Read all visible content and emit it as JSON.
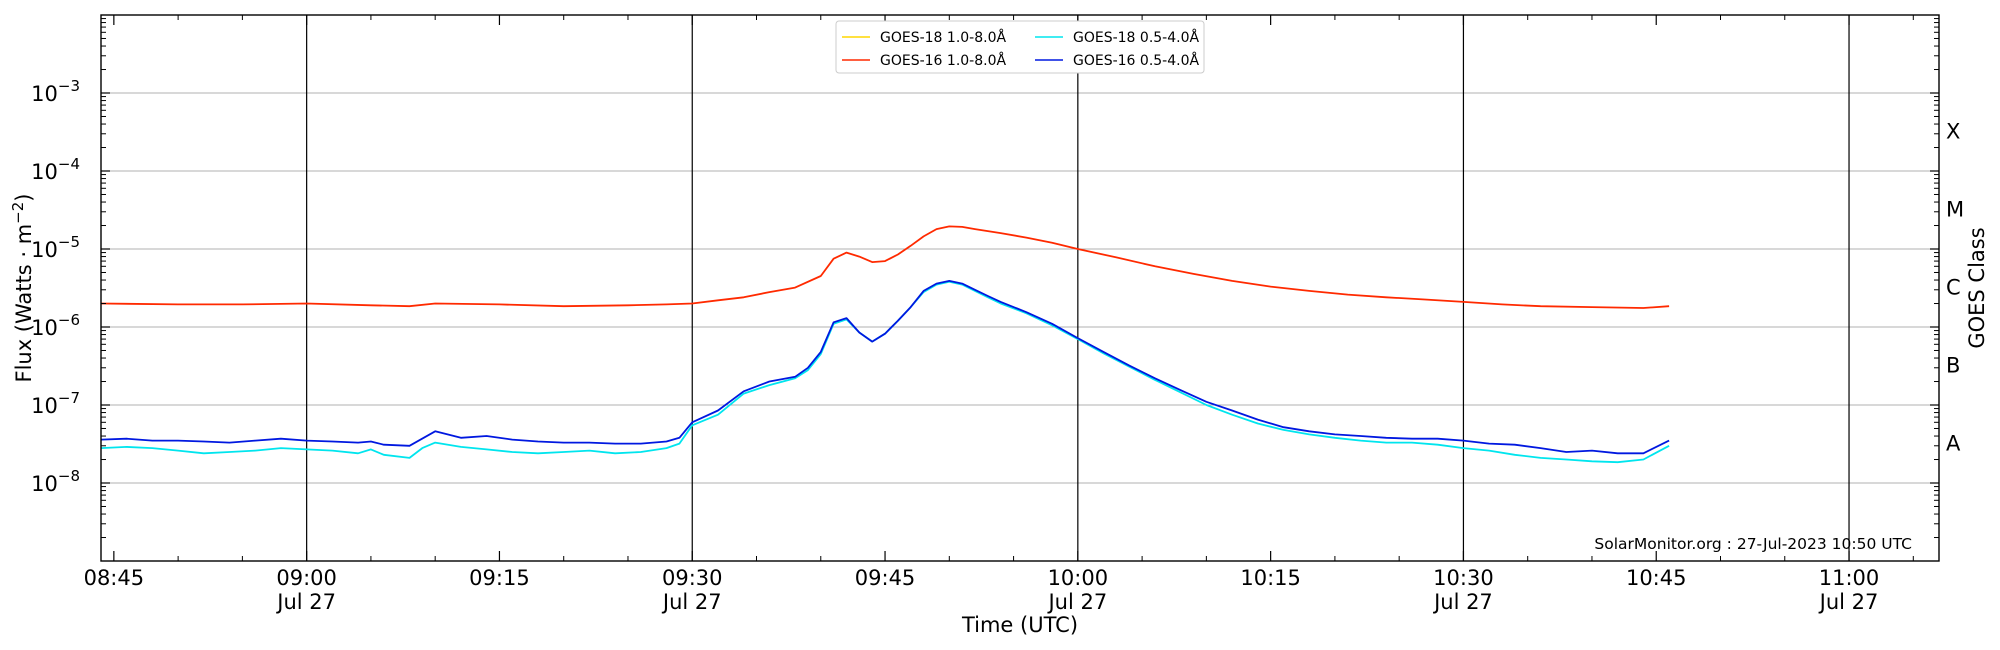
{
  "chart_data": {
    "type": "line",
    "title": "",
    "xlabel": "Time (UTC)",
    "ylabel": "Flux (Watts · m⁻²)",
    "y2label": "GOES Class",
    "yscale": "log",
    "grid": "horizontal gridlines at decades; vertical lines every 30 minutes",
    "xlim": [
      "2023-07-27T08:44:00",
      "2023-07-27T11:07:00"
    ],
    "ylim": [
      1e-09,
      0.01
    ],
    "x_ticks": [
      {
        "time": "2023-07-27T08:45:00",
        "line1": "08:45",
        "line2": ""
      },
      {
        "time": "2023-07-27T09:00:00",
        "line1": "09:00",
        "line2": "Jul 27"
      },
      {
        "time": "2023-07-27T09:15:00",
        "line1": "09:15",
        "line2": ""
      },
      {
        "time": "2023-07-27T09:30:00",
        "line1": "09:30",
        "line2": "Jul 27"
      },
      {
        "time": "2023-07-27T09:45:00",
        "line1": "09:45",
        "line2": ""
      },
      {
        "time": "2023-07-27T10:00:00",
        "line1": "10:00",
        "line2": "Jul 27"
      },
      {
        "time": "2023-07-27T10:15:00",
        "line1": "10:15",
        "line2": ""
      },
      {
        "time": "2023-07-27T10:30:00",
        "line1": "10:30",
        "line2": "Jul 27"
      },
      {
        "time": "2023-07-27T10:45:00",
        "line1": "10:45",
        "line2": ""
      },
      {
        "time": "2023-07-27T11:00:00",
        "line1": "11:00",
        "line2": "Jul 27"
      }
    ],
    "vertical_lines": [
      "2023-07-27T09:00:00",
      "2023-07-27T09:30:00",
      "2023-07-27T10:00:00",
      "2023-07-27T10:30:00",
      "2023-07-27T11:00:00"
    ],
    "y_ticks": [
      {
        "value": 1e-08,
        "base": "10",
        "exp": "−8"
      },
      {
        "value": 1e-07,
        "base": "10",
        "exp": "−7"
      },
      {
        "value": 1e-06,
        "base": "10",
        "exp": "−6"
      },
      {
        "value": 1e-05,
        "base": "10",
        "exp": "−5"
      },
      {
        "value": 0.0001,
        "base": "10",
        "exp": "−4"
      },
      {
        "value": 0.001,
        "base": "10",
        "exp": "−3"
      }
    ],
    "goes_classes": [
      {
        "label": "A",
        "flux": 3.2e-08
      },
      {
        "label": "B",
        "flux": 3.2e-07
      },
      {
        "label": "C",
        "flux": 3.2e-06
      },
      {
        "label": "M",
        "flux": 3.2e-05
      },
      {
        "label": "X",
        "flux": 0.00032
      }
    ],
    "legend_position": "top-center",
    "credit": "SolarMonitor.org : 27-Jul-2023 10:50 UTC",
    "series": [
      {
        "name": "GOES-18 1.0-8.0Å",
        "color": "#ffd700",
        "x": [],
        "y": []
      },
      {
        "name": "GOES-18 0.5-4.0Å",
        "color": "#00e5ee",
        "x": [
          "08:44",
          "08:46",
          "08:48",
          "08:50",
          "08:52",
          "08:54",
          "08:56",
          "08:58",
          "09:00",
          "09:02",
          "09:04",
          "09:05",
          "09:06",
          "09:08",
          "09:09",
          "09:10",
          "09:12",
          "09:14",
          "09:16",
          "09:18",
          "09:20",
          "09:22",
          "09:24",
          "09:26",
          "09:28",
          "09:29",
          "09:30",
          "09:32",
          "09:34",
          "09:36",
          "09:38",
          "09:39",
          "09:40",
          "09:41",
          "09:42",
          "09:43",
          "09:44",
          "09:45",
          "09:46",
          "09:47",
          "09:48",
          "09:49",
          "09:50",
          "09:51",
          "09:52",
          "09:53",
          "09:54",
          "09:56",
          "09:58",
          "10:00",
          "10:02",
          "10:04",
          "10:06",
          "10:08",
          "10:10",
          "10:12",
          "10:14",
          "10:16",
          "10:18",
          "10:20",
          "10:22",
          "10:24",
          "10:26",
          "10:28",
          "10:30",
          "10:32",
          "10:34",
          "10:36",
          "10:38",
          "10:40",
          "10:42",
          "10:44",
          "10:46"
        ],
        "y": [
          2.8e-08,
          2.9e-08,
          2.8e-08,
          2.6e-08,
          2.4e-08,
          2.5e-08,
          2.6e-08,
          2.8e-08,
          2.7e-08,
          2.6e-08,
          2.4e-08,
          2.7e-08,
          2.3e-08,
          2.1e-08,
          2.8e-08,
          3.3e-08,
          2.9e-08,
          2.7e-08,
          2.5e-08,
          2.4e-08,
          2.5e-08,
          2.6e-08,
          2.4e-08,
          2.5e-08,
          2.8e-08,
          3.2e-08,
          5.5e-08,
          7.5e-08,
          1.4e-07,
          1.8e-07,
          2.2e-07,
          2.8e-07,
          4.5e-07,
          1.1e-06,
          1.25e-06,
          8.5e-07,
          6.5e-07,
          8.2e-07,
          1.2e-06,
          1.8e-06,
          2.8e-06,
          3.5e-06,
          3.8e-06,
          3.5e-06,
          2.9e-06,
          2.4e-06,
          2e-06,
          1.5e-06,
          1.05e-06,
          7e-07,
          4.6e-07,
          3.1e-07,
          2.1e-07,
          1.45e-07,
          1e-07,
          7.5e-08,
          5.8e-08,
          4.8e-08,
          4.2e-08,
          3.8e-08,
          3.5e-08,
          3.3e-08,
          3.3e-08,
          3.1e-08,
          2.8e-08,
          2.6e-08,
          2.3e-08,
          2.1e-08,
          2e-08,
          1.9e-08,
          1.85e-08,
          2e-08,
          3e-08
        ]
      },
      {
        "name": "GOES-16 1.0-8.0Å",
        "color": "#ff2a00",
        "x": [
          "08:44",
          "08:50",
          "08:55",
          "09:00",
          "09:05",
          "09:08",
          "09:10",
          "09:15",
          "09:20",
          "09:25",
          "09:28",
          "09:30",
          "09:32",
          "09:34",
          "09:36",
          "09:38",
          "09:40",
          "09:41",
          "09:42",
          "09:43",
          "09:44",
          "09:45",
          "09:46",
          "09:47",
          "09:48",
          "09:49",
          "09:50",
          "09:51",
          "09:52",
          "09:54",
          "09:56",
          "09:58",
          "10:00",
          "10:03",
          "10:06",
          "10:09",
          "10:12",
          "10:15",
          "10:18",
          "10:21",
          "10:24",
          "10:27",
          "10:30",
          "10:33",
          "10:36",
          "10:40",
          "10:44",
          "10:46"
        ],
        "y": [
          2e-06,
          1.95e-06,
          1.95e-06,
          2e-06,
          1.9e-06,
          1.85e-06,
          2e-06,
          1.95e-06,
          1.85e-06,
          1.9e-06,
          1.95e-06,
          2e-06,
          2.2e-06,
          2.4e-06,
          2.8e-06,
          3.2e-06,
          4.5e-06,
          7.5e-06,
          9e-06,
          8e-06,
          6.8e-06,
          7e-06,
          8.5e-06,
          1.1e-05,
          1.45e-05,
          1.8e-05,
          1.95e-05,
          1.92e-05,
          1.8e-05,
          1.6e-05,
          1.4e-05,
          1.2e-05,
          1e-05,
          7.8e-06,
          6e-06,
          4.8e-06,
          3.9e-06,
          3.3e-06,
          2.9e-06,
          2.6e-06,
          2.4e-06,
          2.25e-06,
          2.1e-06,
          1.95e-06,
          1.85e-06,
          1.8e-06,
          1.75e-06,
          1.85e-06
        ]
      },
      {
        "name": "GOES-16 0.5-4.0Å",
        "color": "#0018e0",
        "x": [
          "08:44",
          "08:46",
          "08:48",
          "08:50",
          "08:52",
          "08:54",
          "08:56",
          "08:58",
          "09:00",
          "09:02",
          "09:04",
          "09:05",
          "09:06",
          "09:08",
          "09:10",
          "09:12",
          "09:14",
          "09:16",
          "09:18",
          "09:20",
          "09:22",
          "09:24",
          "09:26",
          "09:28",
          "09:29",
          "09:30",
          "09:32",
          "09:34",
          "09:36",
          "09:38",
          "09:39",
          "09:40",
          "09:41",
          "09:42",
          "09:43",
          "09:44",
          "09:45",
          "09:46",
          "09:47",
          "09:48",
          "09:49",
          "09:50",
          "09:51",
          "09:52",
          "09:53",
          "09:54",
          "09:56",
          "09:58",
          "10:00",
          "10:02",
          "10:04",
          "10:06",
          "10:08",
          "10:10",
          "10:12",
          "10:14",
          "10:16",
          "10:18",
          "10:20",
          "10:22",
          "10:24",
          "10:26",
          "10:28",
          "10:30",
          "10:32",
          "10:34",
          "10:36",
          "10:38",
          "10:40",
          "10:42",
          "10:44",
          "10:46"
        ],
        "y": [
          3.6e-08,
          3.7e-08,
          3.5e-08,
          3.5e-08,
          3.4e-08,
          3.3e-08,
          3.5e-08,
          3.7e-08,
          3.5e-08,
          3.4e-08,
          3.3e-08,
          3.4e-08,
          3.1e-08,
          3e-08,
          4.6e-08,
          3.8e-08,
          4e-08,
          3.6e-08,
          3.4e-08,
          3.3e-08,
          3.3e-08,
          3.2e-08,
          3.2e-08,
          3.4e-08,
          3.8e-08,
          6e-08,
          8.5e-08,
          1.5e-07,
          2e-07,
          2.3e-07,
          3e-07,
          4.8e-07,
          1.15e-06,
          1.3e-06,
          8.5e-07,
          6.5e-07,
          8.2e-07,
          1.2e-06,
          1.8e-06,
          2.9e-06,
          3.6e-06,
          3.9e-06,
          3.6e-06,
          3e-06,
          2.5e-06,
          2.1e-06,
          1.55e-06,
          1.1e-06,
          7.2e-07,
          4.8e-07,
          3.2e-07,
          2.2e-07,
          1.55e-07,
          1.1e-07,
          8.5e-08,
          6.5e-08,
          5.2e-08,
          4.6e-08,
          4.2e-08,
          4e-08,
          3.8e-08,
          3.7e-08,
          3.7e-08,
          3.5e-08,
          3.2e-08,
          3.1e-08,
          2.8e-08,
          2.5e-08,
          2.6e-08,
          2.4e-08,
          2.4e-08,
          3.5e-08
        ]
      }
    ]
  }
}
